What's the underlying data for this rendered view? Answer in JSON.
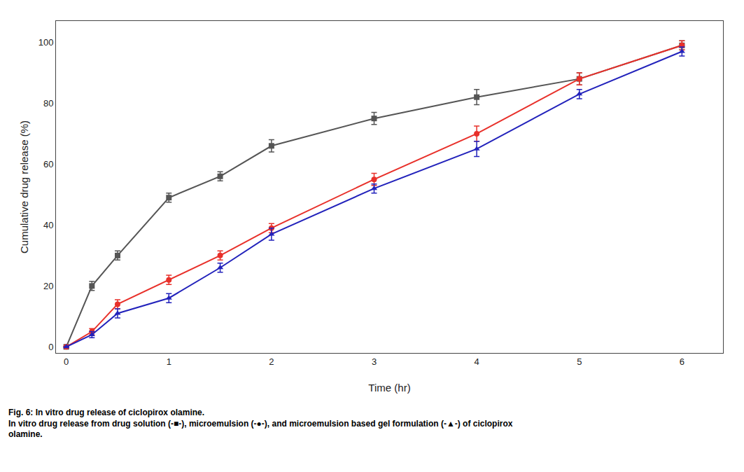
{
  "chart_data": {
    "type": "line",
    "x": [
      0,
      0.25,
      0.5,
      1,
      1.5,
      2,
      3,
      4,
      5,
      6
    ],
    "series": [
      {
        "color": "#555555",
        "marker": "square",
        "line_style": "solid",
        "values": [
          0,
          20,
          30,
          49,
          56,
          66,
          75,
          82,
          88,
          99
        ],
        "yerr": [
          0,
          1.5,
          1.5,
          1.5,
          1.5,
          2.0,
          2.0,
          2.5,
          2.0,
          1.5
        ]
      },
      {
        "color": "#e8302a",
        "marker": "circle",
        "line_style": "solid",
        "values": [
          0,
          5,
          14,
          22,
          30,
          39,
          55,
          70,
          88,
          99
        ],
        "yerr": [
          0,
          1.0,
          1.5,
          1.5,
          1.5,
          1.5,
          2.0,
          2.5,
          2.0,
          1.5
        ]
      },
      {
        "color": "#2222bb",
        "marker": "triangle-up",
        "line_style": "solid",
        "values": [
          0,
          4,
          11,
          16,
          26,
          37,
          52,
          65,
          83,
          97
        ],
        "yerr": [
          0,
          1.0,
          1.5,
          1.5,
          1.5,
          2.0,
          1.5,
          2.5,
          1.5,
          1.5
        ]
      }
    ],
    "x_label": "Time (hr)",
    "y_label": "Cumulative drug release (%)",
    "xlim": [
      -0.1,
      6.4
    ],
    "ylim": [
      -2,
      107
    ],
    "xticks": [
      0,
      1,
      2,
      3,
      4,
      5,
      6
    ],
    "yticks": [
      0,
      20,
      40,
      60,
      80,
      100
    ],
    "grid": false,
    "annotations": [
      "Fig. 6: In vitro drug release of ciclopirox olamine.",
      "In vitro drug release from drug solution (-■-), microemulsion (-●-), and microemulsion based gel formulation (-▲-) of ciclopirox",
      "olamine."
    ]
  }
}
